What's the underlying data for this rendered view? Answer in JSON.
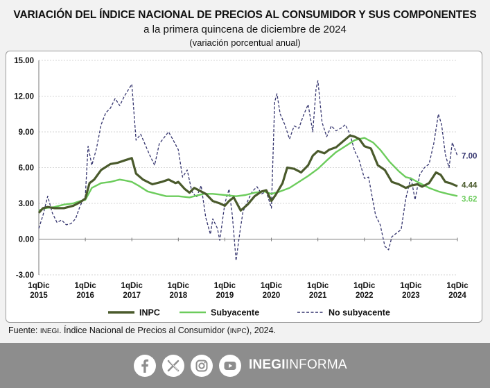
{
  "header": {
    "title": "VARIACIÓN DEL ÍNDICE NACIONAL DE PRECIOS AL CONSUMIDOR Y SUS COMPONENTES",
    "subtitle": "a la primera quincena de diciembre de 2024",
    "unit_note": "(variación porcentual anual)"
  },
  "chart_data": {
    "type": "line",
    "ylim": [
      -3,
      15
    ],
    "yticks": [
      -3,
      0,
      3,
      6,
      9,
      12,
      15
    ],
    "ytick_labels": [
      "-3.00",
      "0.00",
      "3.00",
      "6.00",
      "9.00",
      "12.00",
      "15.00"
    ],
    "x_start": 2015.96,
    "x_end": 2024.96,
    "xticks": [
      {
        "line1": "1qDic",
        "line2": "2015"
      },
      {
        "line1": "1qDic",
        "line2": "2016"
      },
      {
        "line1": "1qDic",
        "line2": "2017"
      },
      {
        "line1": "1qDic",
        "line2": "2018"
      },
      {
        "line1": "1qDic",
        "line2": "2019"
      },
      {
        "line1": "1qDic",
        "line2": "2020"
      },
      {
        "line1": "1qDic",
        "line2": "2021"
      },
      {
        "line1": "1qDic",
        "line2": "2022"
      },
      {
        "line1": "1qDic",
        "line2": "2023"
      },
      {
        "line1": "1qDic",
        "line2": "2024"
      }
    ],
    "grid": true,
    "legend_position": "bottom",
    "series": [
      {
        "name": "INPC",
        "color": "#4a5a2c",
        "style": "solid",
        "end_label": "4.44",
        "points": [
          [
            2015.96,
            2.2
          ],
          [
            2016.05,
            2.6
          ],
          [
            2016.15,
            2.7
          ],
          [
            2016.3,
            2.6
          ],
          [
            2016.5,
            2.6
          ],
          [
            2016.7,
            2.8
          ],
          [
            2016.85,
            3.1
          ],
          [
            2016.96,
            3.4
          ],
          [
            2017.05,
            4.7
          ],
          [
            2017.15,
            5.0
          ],
          [
            2017.3,
            5.8
          ],
          [
            2017.5,
            6.3
          ],
          [
            2017.65,
            6.4
          ],
          [
            2017.8,
            6.6
          ],
          [
            2017.96,
            6.8
          ],
          [
            2018.05,
            5.5
          ],
          [
            2018.2,
            5.0
          ],
          [
            2018.4,
            4.6
          ],
          [
            2018.6,
            4.8
          ],
          [
            2018.75,
            5.0
          ],
          [
            2018.9,
            4.7
          ],
          [
            2018.96,
            4.8
          ],
          [
            2019.1,
            4.2
          ],
          [
            2019.2,
            3.9
          ],
          [
            2019.3,
            4.3
          ],
          [
            2019.45,
            4.0
          ],
          [
            2019.55,
            3.8
          ],
          [
            2019.7,
            3.2
          ],
          [
            2019.85,
            3.0
          ],
          [
            2019.96,
            2.8
          ],
          [
            2020.05,
            3.2
          ],
          [
            2020.15,
            3.5
          ],
          [
            2020.3,
            2.4
          ],
          [
            2020.45,
            2.9
          ],
          [
            2020.6,
            3.6
          ],
          [
            2020.75,
            4.0
          ],
          [
            2020.85,
            4.1
          ],
          [
            2020.96,
            3.2
          ],
          [
            2021.05,
            3.7
          ],
          [
            2021.2,
            4.7
          ],
          [
            2021.3,
            6.0
          ],
          [
            2021.45,
            5.9
          ],
          [
            2021.6,
            5.6
          ],
          [
            2021.75,
            6.2
          ],
          [
            2021.85,
            7.0
          ],
          [
            2021.96,
            7.4
          ],
          [
            2022.1,
            7.2
          ],
          [
            2022.2,
            7.5
          ],
          [
            2022.35,
            7.7
          ],
          [
            2022.5,
            8.2
          ],
          [
            2022.65,
            8.7
          ],
          [
            2022.75,
            8.6
          ],
          [
            2022.85,
            8.4
          ],
          [
            2022.96,
            7.8
          ],
          [
            2023.1,
            7.6
          ],
          [
            2023.25,
            6.2
          ],
          [
            2023.4,
            5.8
          ],
          [
            2023.55,
            4.8
          ],
          [
            2023.7,
            4.6
          ],
          [
            2023.85,
            4.3
          ],
          [
            2023.96,
            4.5
          ],
          [
            2024.1,
            4.6
          ],
          [
            2024.2,
            4.4
          ],
          [
            2024.35,
            4.7
          ],
          [
            2024.5,
            5.6
          ],
          [
            2024.6,
            5.4
          ],
          [
            2024.7,
            4.8
          ],
          [
            2024.8,
            4.7
          ],
          [
            2024.96,
            4.44
          ]
        ]
      },
      {
        "name": "Subyacente",
        "color": "#6ccc5c",
        "style": "solid",
        "end_label": "3.62",
        "points": [
          [
            2015.96,
            2.4
          ],
          [
            2016.1,
            2.6
          ],
          [
            2016.3,
            2.7
          ],
          [
            2016.5,
            2.9
          ],
          [
            2016.7,
            3.0
          ],
          [
            2016.85,
            3.2
          ],
          [
            2016.96,
            3.3
          ],
          [
            2017.1,
            4.3
          ],
          [
            2017.3,
            4.7
          ],
          [
            2017.5,
            4.8
          ],
          [
            2017.7,
            5.0
          ],
          [
            2017.85,
            4.9
          ],
          [
            2017.96,
            4.8
          ],
          [
            2018.1,
            4.5
          ],
          [
            2018.3,
            4.0
          ],
          [
            2018.5,
            3.8
          ],
          [
            2018.7,
            3.6
          ],
          [
            2018.96,
            3.6
          ],
          [
            2019.2,
            3.5
          ],
          [
            2019.5,
            3.8
          ],
          [
            2019.7,
            3.8
          ],
          [
            2019.96,
            3.7
          ],
          [
            2020.2,
            3.6
          ],
          [
            2020.4,
            3.7
          ],
          [
            2020.6,
            3.9
          ],
          [
            2020.8,
            4.0
          ],
          [
            2020.96,
            3.8
          ],
          [
            2021.15,
            4.0
          ],
          [
            2021.35,
            4.3
          ],
          [
            2021.55,
            4.8
          ],
          [
            2021.75,
            5.3
          ],
          [
            2021.96,
            5.9
          ],
          [
            2022.15,
            6.6
          ],
          [
            2022.35,
            7.3
          ],
          [
            2022.55,
            7.8
          ],
          [
            2022.75,
            8.3
          ],
          [
            2022.96,
            8.5
          ],
          [
            2023.15,
            8.1
          ],
          [
            2023.3,
            7.5
          ],
          [
            2023.5,
            6.5
          ],
          [
            2023.7,
            5.7
          ],
          [
            2023.85,
            5.2
          ],
          [
            2023.96,
            5.1
          ],
          [
            2024.15,
            4.7
          ],
          [
            2024.35,
            4.3
          ],
          [
            2024.55,
            4.0
          ],
          [
            2024.75,
            3.8
          ],
          [
            2024.96,
            3.62
          ]
        ]
      },
      {
        "name": "No subyacente",
        "color": "#34346e",
        "style": "dashed",
        "end_label": "7.00",
        "points": [
          [
            2015.96,
            0.9
          ],
          [
            2016.05,
            2.0
          ],
          [
            2016.15,
            3.6
          ],
          [
            2016.25,
            2.2
          ],
          [
            2016.35,
            1.4
          ],
          [
            2016.45,
            1.6
          ],
          [
            2016.55,
            1.2
          ],
          [
            2016.65,
            1.3
          ],
          [
            2016.75,
            1.7
          ],
          [
            2016.85,
            2.8
          ],
          [
            2016.96,
            3.6
          ],
          [
            2017.02,
            7.8
          ],
          [
            2017.1,
            6.2
          ],
          [
            2017.2,
            7.6
          ],
          [
            2017.3,
            9.6
          ],
          [
            2017.4,
            10.6
          ],
          [
            2017.5,
            11.0
          ],
          [
            2017.6,
            11.8
          ],
          [
            2017.7,
            11.2
          ],
          [
            2017.8,
            12.0
          ],
          [
            2017.96,
            13.0
          ],
          [
            2018.05,
            8.3
          ],
          [
            2018.15,
            8.8
          ],
          [
            2018.25,
            7.9
          ],
          [
            2018.35,
            7.0
          ],
          [
            2018.45,
            6.2
          ],
          [
            2018.55,
            8.0
          ],
          [
            2018.65,
            8.5
          ],
          [
            2018.75,
            9.0
          ],
          [
            2018.85,
            8.3
          ],
          [
            2018.96,
            7.5
          ],
          [
            2019.05,
            5.2
          ],
          [
            2019.15,
            5.8
          ],
          [
            2019.25,
            4.0
          ],
          [
            2019.35,
            3.5
          ],
          [
            2019.45,
            4.5
          ],
          [
            2019.55,
            1.8
          ],
          [
            2019.65,
            0.4
          ],
          [
            2019.7,
            1.7
          ],
          [
            2019.8,
            0.9
          ],
          [
            2019.85,
            -0.1
          ],
          [
            2019.96,
            3.0
          ],
          [
            2020.05,
            4.2
          ],
          [
            2020.12,
            2.0
          ],
          [
            2020.2,
            -1.8
          ],
          [
            2020.28,
            0.5
          ],
          [
            2020.35,
            2.3
          ],
          [
            2020.45,
            3.2
          ],
          [
            2020.55,
            4.0
          ],
          [
            2020.65,
            4.4
          ],
          [
            2020.75,
            3.8
          ],
          [
            2020.85,
            4.0
          ],
          [
            2020.96,
            2.6
          ],
          [
            2021.03,
            11.5
          ],
          [
            2021.08,
            12.2
          ],
          [
            2021.15,
            10.5
          ],
          [
            2021.25,
            9.6
          ],
          [
            2021.35,
            8.4
          ],
          [
            2021.45,
            9.5
          ],
          [
            2021.55,
            9.3
          ],
          [
            2021.65,
            10.4
          ],
          [
            2021.75,
            11.3
          ],
          [
            2021.85,
            9.0
          ],
          [
            2021.92,
            12.6
          ],
          [
            2021.96,
            13.3
          ],
          [
            2022.05,
            9.8
          ],
          [
            2022.15,
            8.6
          ],
          [
            2022.25,
            9.5
          ],
          [
            2022.35,
            9.1
          ],
          [
            2022.45,
            9.3
          ],
          [
            2022.55,
            9.6
          ],
          [
            2022.65,
            8.8
          ],
          [
            2022.75,
            7.4
          ],
          [
            2022.85,
            6.6
          ],
          [
            2022.96,
            5.1
          ],
          [
            2023.05,
            5.2
          ],
          [
            2023.12,
            3.7
          ],
          [
            2023.2,
            2.0
          ],
          [
            2023.3,
            1.2
          ],
          [
            2023.4,
            -0.6
          ],
          [
            2023.48,
            -0.9
          ],
          [
            2023.55,
            0.2
          ],
          [
            2023.65,
            0.5
          ],
          [
            2023.75,
            0.8
          ],
          [
            2023.85,
            3.4
          ],
          [
            2023.96,
            5.2
          ],
          [
            2024.05,
            3.3
          ],
          [
            2024.15,
            5.4
          ],
          [
            2024.25,
            6.0
          ],
          [
            2024.35,
            6.3
          ],
          [
            2024.45,
            8.0
          ],
          [
            2024.55,
            10.5
          ],
          [
            2024.62,
            9.6
          ],
          [
            2024.7,
            7.1
          ],
          [
            2024.78,
            6.0
          ],
          [
            2024.85,
            8.1
          ],
          [
            2024.96,
            7.0
          ]
        ]
      }
    ]
  },
  "source": {
    "prefix": "Fuente: ",
    "inegi": "INEGI",
    "middle": ". Índice Nacional de Precios al Consumidor (",
    "inpc": "INPC",
    "suffix": "), 2024."
  },
  "footer": {
    "brand_bold": "INEGI",
    "brand_light": "INFORMA",
    "social_icons": [
      "facebook-icon",
      "x-icon",
      "instagram-icon",
      "youtube-icon"
    ]
  }
}
